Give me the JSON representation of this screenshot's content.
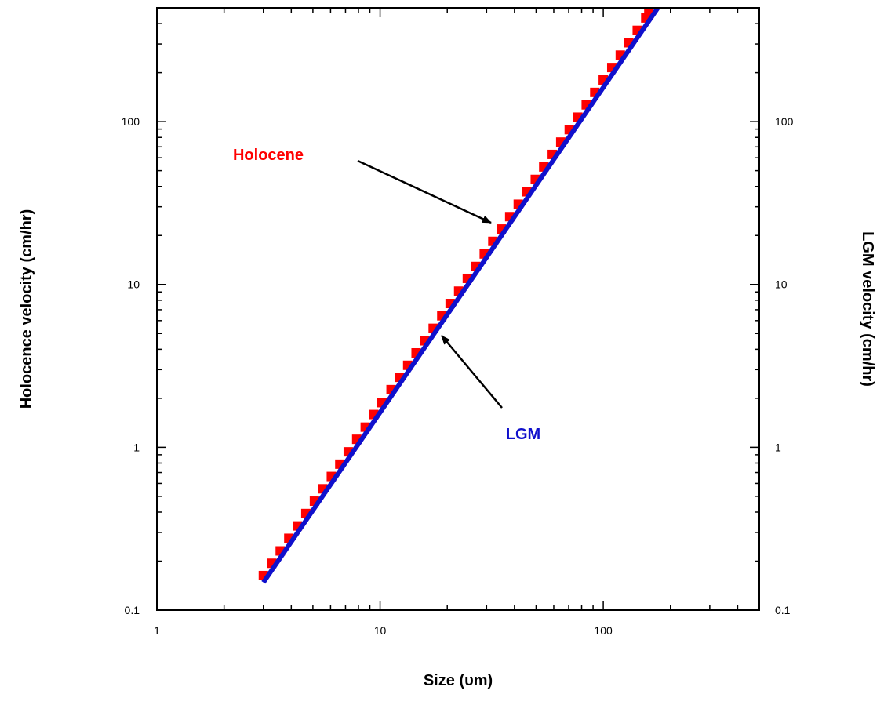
{
  "chart_data": {
    "type": "scatter",
    "title": "",
    "xlabel": "Size (υm)",
    "ylabel_left": "Holocence velocity (cm/hr)",
    "ylabel_right": "LGM velocity (cm/hr)",
    "x_scale": "log",
    "y_scale": "log",
    "xlim": [
      1,
      500
    ],
    "ylim": [
      0.1,
      500
    ],
    "x_ticks": [
      {
        "value": 1,
        "label": "1"
      },
      {
        "value": 10,
        "label": "10"
      },
      {
        "value": 100,
        "label": "100"
      }
    ],
    "y_ticks": [
      {
        "value": 0.1,
        "label": "0.1"
      },
      {
        "value": 1,
        "label": "1"
      },
      {
        "value": 10,
        "label": "10"
      },
      {
        "value": 100,
        "label": "100"
      }
    ],
    "y_ticks_right": [
      {
        "value": 0.1,
        "label": "0.1"
      },
      {
        "value": 1,
        "label": "1"
      },
      {
        "value": 10,
        "label": "10"
      },
      {
        "value": 100,
        "label": "100"
      }
    ],
    "grid": false,
    "series": [
      {
        "name": "Holocene",
        "kind": "markers",
        "color": "#ff0000",
        "marker": "square",
        "x": [
          3.0,
          3.27,
          3.57,
          3.9,
          4.26,
          4.65,
          5.08,
          5.54,
          6.05,
          6.6,
          7.2,
          7.86,
          8.58,
          9.37,
          10.2,
          11.2,
          12.2,
          13.3,
          14.5,
          15.8,
          17.3,
          18.9,
          20.6,
          22.5,
          24.6,
          26.8,
          29.3,
          32.0,
          34.9,
          38.1,
          41.6,
          45.4,
          49.6,
          54.1,
          59.1,
          64.5,
          70.4,
          76.9,
          83.9,
          91.6,
          100.0,
          109.2,
          119.2,
          130.1,
          142.0,
          155.0,
          160.0
        ],
        "y": [
          0.163,
          0.194,
          0.231,
          0.276,
          0.329,
          0.392,
          0.467,
          0.556,
          0.662,
          0.788,
          0.938,
          1.12,
          1.33,
          1.59,
          1.88,
          2.26,
          2.69,
          3.19,
          3.8,
          4.51,
          5.38,
          6.42,
          7.64,
          9.1,
          10.9,
          12.9,
          15.4,
          18.4,
          21.9,
          26.1,
          31.1,
          37.1,
          44.2,
          52.7,
          62.9,
          74.9,
          89.3,
          106.5,
          126.8,
          151.2,
          180.3,
          215.0,
          256.2,
          305.3,
          363.7,
          433.4,
          460.0
        ]
      },
      {
        "name": "LGM",
        "kind": "line",
        "color": "#1010cc",
        "x": [
          3.0,
          180.0
        ],
        "y": [
          0.148,
          525.0
        ]
      }
    ],
    "annotations": [
      {
        "text": "Holocene",
        "color": "#ff0000",
        "points_to_series": "Holocene",
        "points_to": {
          "x": 36.0,
          "y": 23.0
        }
      },
      {
        "text": "LGM",
        "color": "#1010cc",
        "points_to_series": "LGM",
        "points_to": {
          "x": 18.0,
          "y": 5.0
        }
      }
    ]
  }
}
